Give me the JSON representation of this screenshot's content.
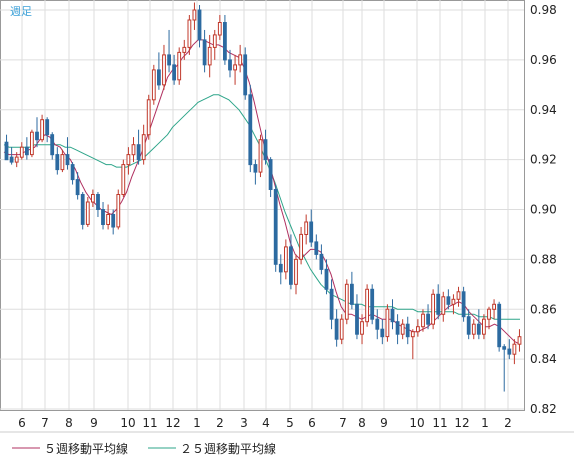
{
  "chart_data": {
    "type": "candlestick",
    "period_label": "週足",
    "y_axis": {
      "ticks": [
        "0.98",
        "0.96",
        "0.94",
        "0.92",
        "0.90",
        "0.88",
        "0.86",
        "0.84",
        "0.82"
      ],
      "ylim": [
        0.82,
        0.99
      ]
    },
    "x_axis": {
      "ticks": [
        "6",
        "7",
        "8",
        "9",
        "10",
        "11",
        "12",
        "1",
        "2",
        "3",
        "4",
        "5",
        "6",
        "7",
        "8",
        "9",
        "10",
        "11",
        "12",
        "1",
        "2"
      ]
    },
    "legend": {
      "ma5": "５週移動平均線",
      "ma25": "２５週移動平均線"
    },
    "colors": {
      "up": "#c0392b",
      "down": "#2c6aa0",
      "ma5": "#b03060",
      "ma25": "#2ea58a",
      "grid": "#dddddd",
      "axis": "#999999"
    },
    "candles": [
      [
        0.927,
        0.93,
        0.921,
        0.92
      ],
      [
        0.921,
        0.925,
        0.918,
        0.919
      ],
      [
        0.919,
        0.923,
        0.917,
        0.921
      ],
      [
        0.921,
        0.927,
        0.92,
        0.925
      ],
      [
        0.925,
        0.929,
        0.92,
        0.922
      ],
      [
        0.922,
        0.932,
        0.921,
        0.931
      ],
      [
        0.931,
        0.937,
        0.925,
        0.928
      ],
      [
        0.928,
        0.938,
        0.927,
        0.936
      ],
      [
        0.936,
        0.937,
        0.927,
        0.93
      ],
      [
        0.93,
        0.931,
        0.92,
        0.922
      ],
      [
        0.922,
        0.925,
        0.914,
        0.916
      ],
      [
        0.916,
        0.924,
        0.915,
        0.922
      ],
      [
        0.922,
        0.929,
        0.916,
        0.918
      ],
      [
        0.918,
        0.919,
        0.91,
        0.912
      ],
      [
        0.912,
        0.915,
        0.904,
        0.906
      ],
      [
        0.906,
        0.907,
        0.892,
        0.894
      ],
      [
        0.894,
        0.905,
        0.893,
        0.903
      ],
      [
        0.903,
        0.908,
        0.901,
        0.906
      ],
      [
        0.906,
        0.907,
        0.897,
        0.9
      ],
      [
        0.9,
        0.903,
        0.892,
        0.894
      ],
      [
        0.894,
        0.902,
        0.892,
        0.898
      ],
      [
        0.898,
        0.9,
        0.89,
        0.893
      ],
      [
        0.893,
        0.908,
        0.892,
        0.906
      ],
      [
        0.906,
        0.92,
        0.905,
        0.918
      ],
      [
        0.918,
        0.925,
        0.914,
        0.922
      ],
      [
        0.922,
        0.929,
        0.919,
        0.926
      ],
      [
        0.926,
        0.932,
        0.918,
        0.92
      ],
      [
        0.92,
        0.934,
        0.918,
        0.93
      ],
      [
        0.93,
        0.946,
        0.928,
        0.944
      ],
      [
        0.944,
        0.958,
        0.942,
        0.956
      ],
      [
        0.956,
        0.963,
        0.948,
        0.95
      ],
      [
        0.95,
        0.966,
        0.948,
        0.962
      ],
      [
        0.962,
        0.972,
        0.955,
        0.958
      ],
      [
        0.958,
        0.962,
        0.95,
        0.952
      ],
      [
        0.952,
        0.965,
        0.95,
        0.963
      ],
      [
        0.963,
        0.968,
        0.96,
        0.965
      ],
      [
        0.965,
        0.978,
        0.962,
        0.976
      ],
      [
        0.976,
        0.983,
        0.972,
        0.98
      ],
      [
        0.98,
        0.982,
        0.965,
        0.968
      ],
      [
        0.968,
        0.972,
        0.955,
        0.958
      ],
      [
        0.958,
        0.97,
        0.953,
        0.965
      ],
      [
        0.965,
        0.972,
        0.96,
        0.97
      ],
      [
        0.97,
        0.978,
        0.968,
        0.975
      ],
      [
        0.975,
        0.978,
        0.958,
        0.96
      ],
      [
        0.96,
        0.964,
        0.953,
        0.956
      ],
      [
        0.956,
        0.962,
        0.95,
        0.958
      ],
      [
        0.958,
        0.966,
        0.955,
        0.962
      ],
      [
        0.962,
        0.965,
        0.944,
        0.946
      ],
      [
        0.946,
        0.95,
        0.915,
        0.918
      ],
      [
        0.918,
        0.92,
        0.91,
        0.915
      ],
      [
        0.915,
        0.93,
        0.913,
        0.928
      ],
      [
        0.928,
        0.932,
        0.918,
        0.92
      ],
      [
        0.92,
        0.921,
        0.905,
        0.908
      ],
      [
        0.908,
        0.91,
        0.875,
        0.878
      ],
      [
        0.878,
        0.882,
        0.87,
        0.875
      ],
      [
        0.875,
        0.888,
        0.872,
        0.885
      ],
      [
        0.885,
        0.89,
        0.868,
        0.87
      ],
      [
        0.87,
        0.882,
        0.866,
        0.88
      ],
      [
        0.88,
        0.893,
        0.878,
        0.89
      ],
      [
        0.89,
        0.898,
        0.886,
        0.895
      ],
      [
        0.895,
        0.9,
        0.885,
        0.887
      ],
      [
        0.887,
        0.89,
        0.88,
        0.882
      ],
      [
        0.882,
        0.886,
        0.874,
        0.876
      ],
      [
        0.876,
        0.88,
        0.866,
        0.868
      ],
      [
        0.868,
        0.872,
        0.852,
        0.856
      ],
      [
        0.856,
        0.86,
        0.845,
        0.848
      ],
      [
        0.848,
        0.858,
        0.846,
        0.856
      ],
      [
        0.856,
        0.872,
        0.854,
        0.87
      ],
      [
        0.87,
        0.875,
        0.86,
        0.862
      ],
      [
        0.862,
        0.866,
        0.848,
        0.85
      ],
      [
        0.85,
        0.858,
        0.846,
        0.855
      ],
      [
        0.855,
        0.87,
        0.853,
        0.868
      ],
      [
        0.868,
        0.87,
        0.854,
        0.856
      ],
      [
        0.856,
        0.86,
        0.848,
        0.852
      ],
      [
        0.852,
        0.856,
        0.846,
        0.849
      ],
      [
        0.849,
        0.862,
        0.847,
        0.86
      ],
      [
        0.86,
        0.864,
        0.852,
        0.855
      ],
      [
        0.855,
        0.858,
        0.846,
        0.85
      ],
      [
        0.85,
        0.856,
        0.848,
        0.854
      ],
      [
        0.854,
        0.857,
        0.846,
        0.849
      ],
      [
        0.849,
        0.852,
        0.84,
        0.851
      ],
      [
        0.851,
        0.856,
        0.849,
        0.853
      ],
      [
        0.853,
        0.86,
        0.851,
        0.858
      ],
      [
        0.858,
        0.862,
        0.852,
        0.854
      ],
      [
        0.854,
        0.868,
        0.852,
        0.866
      ],
      [
        0.866,
        0.87,
        0.856,
        0.858
      ],
      [
        0.858,
        0.867,
        0.855,
        0.865
      ],
      [
        0.865,
        0.868,
        0.86,
        0.862
      ],
      [
        0.862,
        0.866,
        0.858,
        0.864
      ],
      [
        0.864,
        0.869,
        0.861,
        0.867
      ],
      [
        0.867,
        0.869,
        0.855,
        0.857
      ],
      [
        0.857,
        0.86,
        0.848,
        0.85
      ],
      [
        0.85,
        0.856,
        0.848,
        0.854
      ],
      [
        0.854,
        0.86,
        0.848,
        0.85
      ],
      [
        0.85,
        0.858,
        0.848,
        0.856
      ],
      [
        0.856,
        0.861,
        0.852,
        0.86
      ],
      [
        0.86,
        0.864,
        0.856,
        0.862
      ],
      [
        0.862,
        0.863,
        0.843,
        0.845
      ],
      [
        0.845,
        0.846,
        0.827,
        0.844
      ],
      [
        0.844,
        0.848,
        0.84,
        0.842
      ],
      [
        0.842,
        0.848,
        0.838,
        0.846
      ],
      [
        0.846,
        0.852,
        0.843,
        0.849
      ]
    ],
    "ma5": [
      0.923,
      0.922,
      0.922,
      0.922,
      0.923,
      0.924,
      0.925,
      0.928,
      0.93,
      0.929,
      0.926,
      0.925,
      0.922,
      0.92,
      0.916,
      0.911,
      0.907,
      0.904,
      0.902,
      0.9,
      0.899,
      0.898,
      0.9,
      0.903,
      0.907,
      0.913,
      0.918,
      0.923,
      0.929,
      0.935,
      0.941,
      0.947,
      0.953,
      0.956,
      0.958,
      0.961,
      0.963,
      0.966,
      0.968,
      0.968,
      0.967,
      0.966,
      0.966,
      0.965,
      0.963,
      0.962,
      0.961,
      0.957,
      0.951,
      0.943,
      0.934,
      0.925,
      0.918,
      0.91,
      0.902,
      0.895,
      0.887,
      0.882,
      0.88,
      0.882,
      0.884,
      0.884,
      0.883,
      0.879,
      0.874,
      0.867,
      0.861,
      0.858,
      0.858,
      0.857,
      0.856,
      0.857,
      0.858,
      0.857,
      0.856,
      0.856,
      0.856,
      0.854,
      0.853,
      0.852,
      0.851,
      0.851,
      0.852,
      0.853,
      0.855,
      0.857,
      0.859,
      0.861,
      0.862,
      0.863,
      0.862,
      0.859,
      0.857,
      0.855,
      0.853,
      0.853,
      0.854,
      0.853,
      0.851,
      0.849,
      0.847,
      0.846
    ],
    "ma25": [
      0.926,
      0.925,
      0.925,
      0.925,
      0.925,
      0.925,
      0.926,
      0.926,
      0.926,
      0.926,
      0.926,
      0.926,
      0.925,
      0.925,
      0.924,
      0.923,
      0.922,
      0.921,
      0.92,
      0.919,
      0.918,
      0.918,
      0.917,
      0.917,
      0.917,
      0.918,
      0.919,
      0.92,
      0.922,
      0.924,
      0.926,
      0.928,
      0.93,
      0.933,
      0.935,
      0.937,
      0.939,
      0.941,
      0.943,
      0.944,
      0.945,
      0.946,
      0.946,
      0.945,
      0.944,
      0.942,
      0.94,
      0.937,
      0.934,
      0.93,
      0.926,
      0.921,
      0.916,
      0.911,
      0.905,
      0.899,
      0.894,
      0.889,
      0.884,
      0.88,
      0.876,
      0.873,
      0.87,
      0.868,
      0.866,
      0.865,
      0.864,
      0.863,
      0.862,
      0.862,
      0.862,
      0.861,
      0.861,
      0.861,
      0.861,
      0.861,
      0.861,
      0.86,
      0.86,
      0.86,
      0.86,
      0.859,
      0.859,
      0.859,
      0.859,
      0.859,
      0.859,
      0.859,
      0.859,
      0.858,
      0.858,
      0.858,
      0.858,
      0.857,
      0.857,
      0.857,
      0.856,
      0.856,
      0.856,
      0.856,
      0.856,
      0.856
    ]
  }
}
